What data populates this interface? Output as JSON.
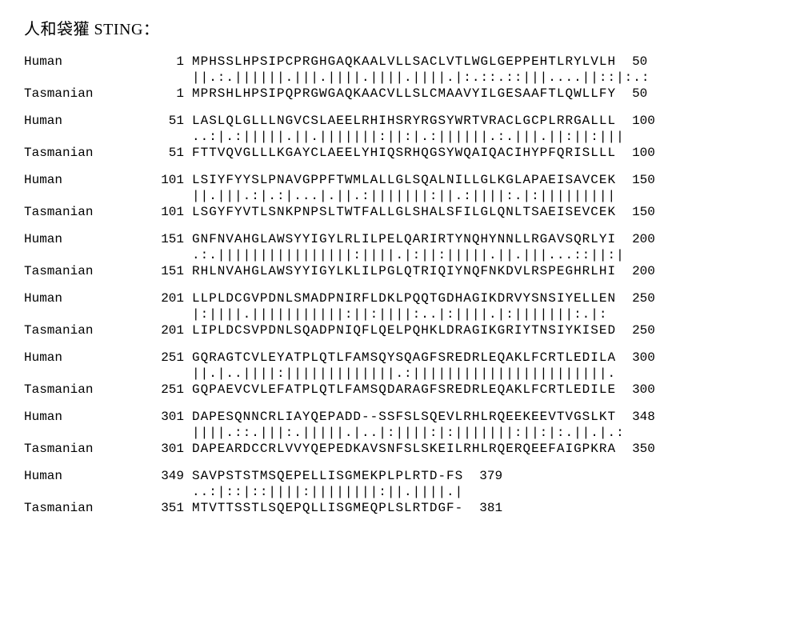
{
  "title": "人和袋獾 STING：",
  "label_human": "Human",
  "label_tas": "Tasmanian",
  "blocks": [
    {
      "seq1_start": "1",
      "seq1": "MPHSSLHPSIPCPRGHGAQKAALVLLSACLVTLWGLGEPPEHTLRYLVLH",
      "seq1_end": "50",
      "match": "||.:.||||||.|||.||||.||||.||||.|:.::.::|||....||::|:.:",
      "seq2_start": "1",
      "seq2": "MPRSHLHPSIPQPRGWGAQKAACVLLSLCMAAVYILGESAAFTLQWLLFY",
      "seq2_end": "50"
    },
    {
      "seq1_start": "51",
      "seq1": "LASLQLGLLLNGVCSLAEELRHIHSRYRGSYWRTVRACLGCPLRRGALLL",
      "seq1_end": "100",
      "match": "..:|.:|||||.||.|||||||:||:|.:||||||.:.|||.||:||:|||",
      "seq2_start": "51",
      "seq2": "FTTVQVGLLLKGAYCLAEELYHIQSRHQGSYWQAIQACIHYPFQRISLLL",
      "seq2_end": "100"
    },
    {
      "seq1_start": "101",
      "seq1": "LSIYFYYSLPNAVGPPFTWMLALLGLSQALNILLGLKGLAPAEISAVCEK",
      "seq1_end": "150",
      "match": "||.|||.:|.:|...|.||.:|||||||:||.:||||:.|:|||||||||",
      "seq2_start": "101",
      "seq2": "LSGYFYVTLSNKPNPSLTWTFALLGLSHALSFILGLQNLTSAEISEVCEK",
      "seq2_end": "150"
    },
    {
      "seq1_start": "151",
      "seq1": "GNFNVAHGLAWSYYIGYLRLILPELQARIRTYNQHYNNLLRGAVSQRLYI",
      "seq1_end": "200",
      "match": ".:.||||||||||||||||:||||.|:||:|||||.||.|||...::||:|",
      "seq2_start": "151",
      "seq2": "RHLNVAHGLAWSYYIGYLKLILPGLQTRIQIYNQFNKDVLRSPEGHRLHI",
      "seq2_end": "200"
    },
    {
      "seq1_start": "201",
      "seq1": "LLPLDCGVPDNLSMADPNIRFLDKLPQQTGDHAGIKDRVYSNSIYELLEN",
      "seq1_end": "250",
      "match": "|:||||.|||||||||||:||:||||:..|:||||.|:|||||||:.|:",
      "seq2_start": "201",
      "seq2": "LIPLDCSVPDNLSQADPNIQFLQELPQHKLDRAGIKGRIYTNSIYKISED",
      "seq2_end": "250"
    },
    {
      "seq1_start": "251",
      "seq1": "GQRAGTCVLEYATPLQTLFAMSQYSQAGFSREDRLEQAKLFCRTLEDILA",
      "seq1_end": "300",
      "match": "||.|..||||:|||||||||||||.:|||||||||||||||||||||||.",
      "seq2_start": "251",
      "seq2": "GQPAEVCVLEFATPLQTLFAMSQDARAGFSREDRLEQAKLFCRTLEDILE",
      "seq2_end": "300"
    },
    {
      "seq1_start": "301",
      "seq1": "DAPESQNNCRLIAYQEPADD--SSFSLSQEVLRHLRQEEKEEVTVGSLKT",
      "seq1_end": "348",
      "match": "||||.::.|||:.|||||.|..|:||||:|:|||||||:||:|:.||.|.:",
      "seq2_start": "301",
      "seq2": "DAPEARDCCRLVVYQEPEDKAVSNFSLSKEILRHLRQERQEEFAIGPKRA",
      "seq2_end": "350"
    },
    {
      "seq1_start": "349",
      "seq1": "SAVPSTSTMSQEPELLISGMEKPLPLRTD-FS",
      "seq1_end": "379",
      "match": "..:|::|::||||:||||||||:||.||||.|",
      "seq2_start": "351",
      "seq2": "MTVTTSSTLSQEPQLLISGMEQPLSLRTDGF-",
      "seq2_end": "381"
    }
  ]
}
